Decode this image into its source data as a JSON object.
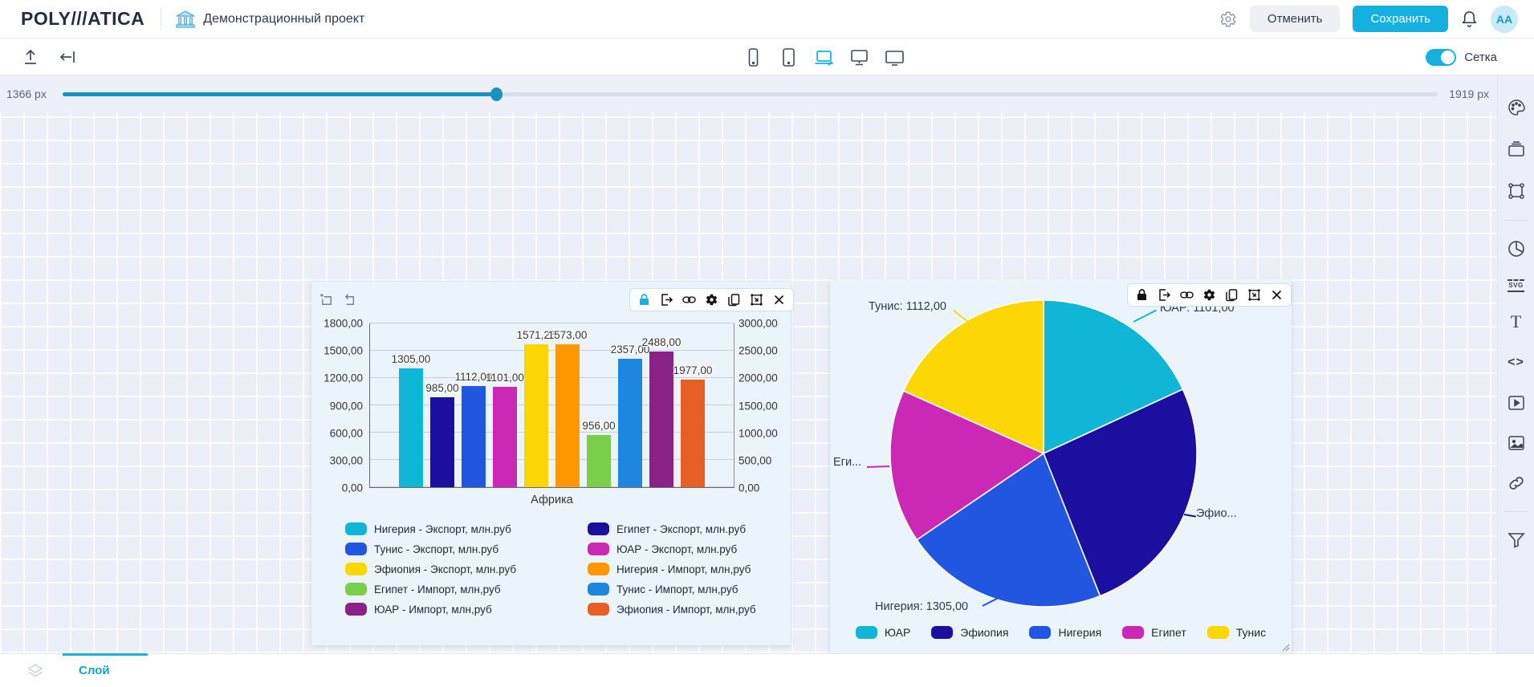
{
  "header": {
    "logo_text": "POLY///ATICA",
    "title": "Демонстрационный проект",
    "cancel_button": "Отменить",
    "save_button": "Сохранить",
    "avatar_initials": "AA"
  },
  "toolbar": {
    "grid_toggle_label": "Сетка",
    "grid_toggle_on": true,
    "active_device": "laptop"
  },
  "width_slider": {
    "current_label": "1366 px",
    "max_label": "1919 px",
    "percent": 31.5
  },
  "sidebar_icon_text": {
    "svg_badge": "SVG",
    "text_glyph": "T",
    "code_glyph": "<>"
  },
  "bottom_bar": {
    "layer_tab": "Слой"
  },
  "accent_colors": {
    "primary": "#14b1e0",
    "slider": "#1794bd"
  },
  "chart_data": [
    {
      "type": "bar",
      "xlabel": "Африка",
      "categories": [
        "Африка"
      ],
      "left_axis": {
        "max": 1800,
        "ticks": [
          "1800,00",
          "1500,00",
          "1200,00",
          "900,00",
          "600,00",
          "300,00",
          "0,00"
        ]
      },
      "right_axis": {
        "max": 3000,
        "ticks": [
          "3000,00",
          "2500,00",
          "2000,00",
          "1500,00",
          "1000,00",
          "500,00",
          "0,00"
        ]
      },
      "series": [
        {
          "name": "Нигерия - Экспорт, млн.руб",
          "color": "#0fb6d6",
          "value": 1305,
          "label": "1305,00",
          "axis": "left"
        },
        {
          "name": "Египет - Экспорт, млн.руб",
          "color": "#1a0f9e",
          "value": 985,
          "label": "985,00",
          "axis": "left"
        },
        {
          "name": "Тунис - Экспорт, млн.руб",
          "color": "#2156e0",
          "value": 1112,
          "label": "1112,00",
          "axis": "left"
        },
        {
          "name": "ЮАР - Экспорт, млн.руб",
          "color": "#cb28b5",
          "value": 1101,
          "label": "1101,00",
          "axis": "left"
        },
        {
          "name": "Эфиопия - Экспорт, млн.руб",
          "color": "#fcd703",
          "value": 1571.25,
          "label": "1571,25",
          "axis": "left"
        },
        {
          "name": "Нигерия - Импорт, млн,руб",
          "color": "#fe9702",
          "value": 1573,
          "label": "1573,00",
          "axis": "left"
        },
        {
          "name": "Египет - Импорт, млн,руб",
          "color": "#79cf49",
          "value": 956,
          "label": "956,00",
          "axis": "right"
        },
        {
          "name": "Тунис - Импорт, млн,руб",
          "color": "#1d87e0",
          "value": 2357,
          "label": "2357,00",
          "axis": "right"
        },
        {
          "name": "ЮАР - Импорт, млн,руб",
          "color": "#8a2287",
          "value": 2488,
          "label": "2488,00",
          "axis": "right"
        },
        {
          "name": "Эфиопия - Импорт, млн,руб",
          "color": "#e75f24",
          "value": 1977,
          "label": "1977,00",
          "axis": "right"
        }
      ],
      "legend_position": "bottom"
    },
    {
      "type": "pie",
      "slices": [
        {
          "name": "ЮАР",
          "value": 1101,
          "color": "#0fb6d6",
          "callout": "ЮАР: 1101,00"
        },
        {
          "name": "Эфиопия",
          "value": 1571.25,
          "color": "#1a0f9e",
          "callout": "Эфио..."
        },
        {
          "name": "Нигерия",
          "value": 1305,
          "color": "#2156e0",
          "callout": "Нигерия: 1305,00"
        },
        {
          "name": "Египет",
          "value": 985,
          "color": "#cb28b5",
          "callout": "Еги..."
        },
        {
          "name": "Тунис",
          "value": 1112,
          "color": "#fcd703",
          "callout": "Тунис: 1112,00"
        }
      ],
      "legend": [
        "ЮАР",
        "Эфиопия",
        "Нигерия",
        "Египет",
        "Тунис"
      ],
      "legend_position": "bottom"
    }
  ]
}
